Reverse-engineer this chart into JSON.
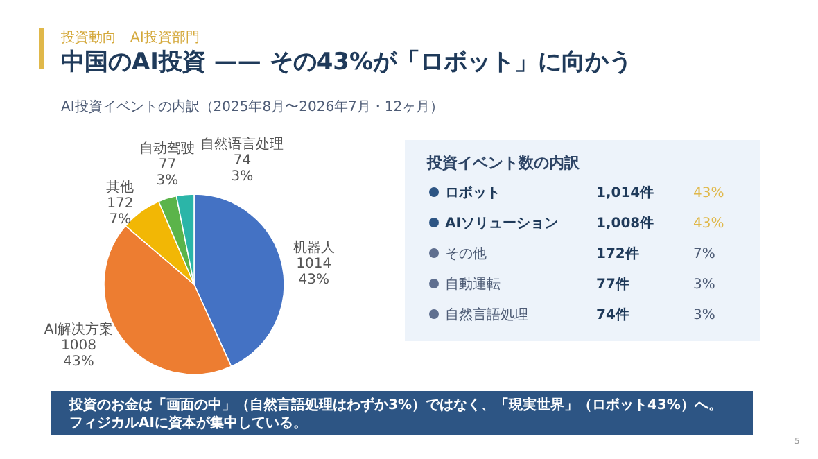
{
  "chart_data": [
    {
      "type": "pie",
      "title": "中国のAI投資 —— その43%が「ロボット」に向かう",
      "subtitle": "AI投資イベントの内訳（2025年8月〜2026年7月・12ヶ月）",
      "categories": [
        "机器人",
        "AI解决方案",
        "其他",
        "自动驾驶",
        "自然语言处理"
      ],
      "values": [
        1014,
        1008,
        172,
        77,
        74
      ],
      "colors": [
        "#4472c4",
        "#ed7d31",
        "#f2b705",
        "#5bb44a",
        "#2bb5a8"
      ],
      "value_labels": [
        "1014\n43%",
        "1008\n43%",
        "172\n7%",
        "77\n3%",
        "74\n3%"
      ],
      "annotations": [
        "投資動向　AI投資部門",
        "投資のお金は「画面の中」（自然言語処理はわずか3%）ではなく、「現実世界」（ロボット43%）へ。",
        "フィジカルAIに資本が集中している。",
        "5"
      ]
    },
    {
      "type": "other",
      "title": "投資イベント数の内訳",
      "categories": [
        "ロボット",
        "AIソリューション",
        "その他",
        "自動運転",
        "自然言語処理"
      ],
      "values": [
        1014,
        1008,
        172,
        77,
        74
      ],
      "value_labels": [
        "1,014件",
        "1,008件",
        "172件",
        "77件",
        "74件"
      ],
      "annotations": [
        "43%",
        "43%",
        "7%",
        "3%",
        "3%"
      ]
    }
  ]
}
